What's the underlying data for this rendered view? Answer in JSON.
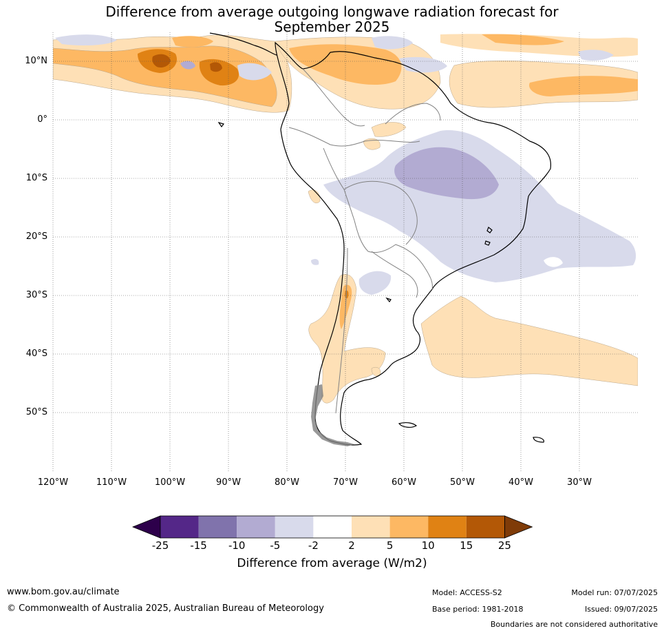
{
  "title": {
    "line1": "Difference from average outgoing longwave radiation forecast for",
    "line2": "September 2025"
  },
  "map": {
    "lat_labels": [
      "10°N",
      "0°",
      "10°S",
      "20°S",
      "30°S",
      "40°S",
      "50°S"
    ],
    "lon_labels": [
      "120°W",
      "110°W",
      "100°W",
      "90°W",
      "80°W",
      "70°W",
      "60°W",
      "50°W",
      "40°W",
      "30°W"
    ],
    "extent": {
      "lon_min": -120,
      "lon_max": -20,
      "lat_min": -60,
      "lat_max": 15
    },
    "colors": {
      "brown_dark": "#b35806",
      "orange_dark": "#e08214",
      "orange": "#fdb863",
      "orange_light": "#fee0b6",
      "purple_light": "#d8daeb",
      "purple": "#b2abd2",
      "purple_dark": "#8073ac",
      "purple_darkest": "#542788"
    }
  },
  "colorbar": {
    "ticks": [
      "-25",
      "-15",
      "-10",
      "-5",
      "-2",
      "2",
      "5",
      "10",
      "15",
      "25"
    ],
    "colors": [
      "#2d004b",
      "#542788",
      "#8073ac",
      "#b2abd2",
      "#d8daeb",
      "#ffffff",
      "#fee0b6",
      "#fdb863",
      "#e08214",
      "#b35806",
      "#7f3b08"
    ],
    "label": "Difference from average (W/m2)"
  },
  "footer": {
    "website": "www.bom.gov.au/climate",
    "copyright": "© Commonwealth of Australia 2025, Australian Bureau of Meteorology",
    "model": "Model: ACCESS-S2",
    "base_period": "Base period: 1981-2018",
    "model_run": "Model run: 07/07/2025",
    "issued": "Issued: 09/07/2025",
    "disclaimer": "Boundaries are not considered authoritative"
  }
}
